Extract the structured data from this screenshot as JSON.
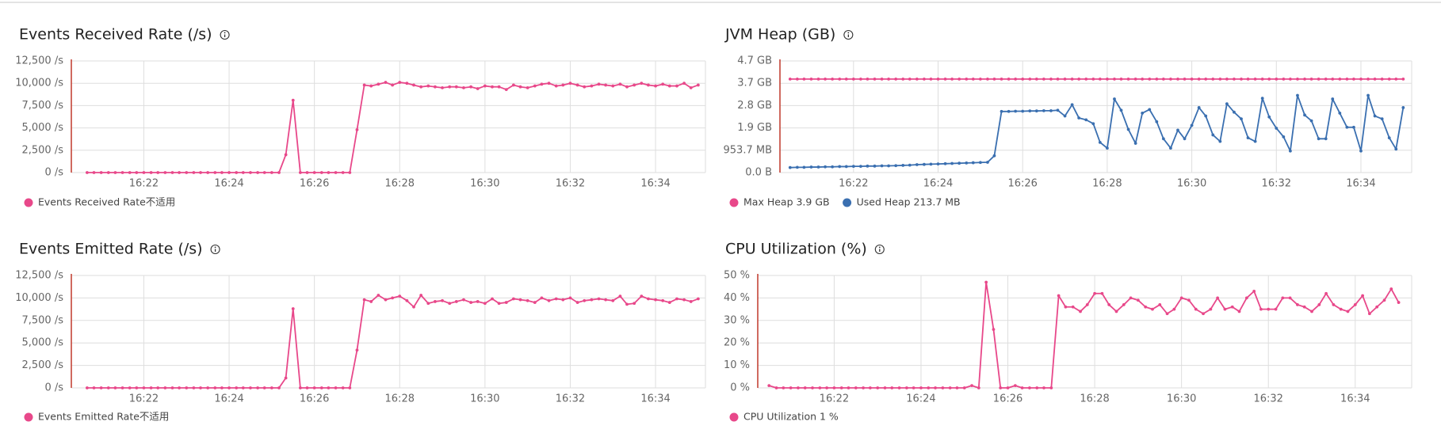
{
  "chart_data": [
    {
      "type": "line",
      "title": "Events Received Rate (/s)",
      "x": [
        20.67,
        20.83,
        21,
        21.17,
        21.33,
        21.5,
        21.67,
        21.83,
        22,
        22.17,
        22.33,
        22.5,
        22.67,
        22.83,
        23,
        23.17,
        23.33,
        23.5,
        23.67,
        23.83,
        24,
        24.17,
        24.33,
        24.5,
        24.67,
        24.83,
        25,
        25.17,
        25.33,
        25.5,
        25.67,
        25.83,
        26,
        26.17,
        26.33,
        26.5,
        26.67,
        26.83,
        27,
        27.17,
        27.33,
        27.5,
        27.67,
        27.83,
        28,
        28.17,
        28.33,
        28.5,
        28.67,
        28.83,
        29,
        29.17,
        29.33,
        29.5,
        29.67,
        29.83,
        30,
        30.17,
        30.33,
        30.5,
        30.67,
        30.83,
        31,
        31.17,
        31.33,
        31.5,
        31.67,
        31.83,
        32,
        32.17,
        32.33,
        32.5,
        32.67,
        32.83,
        33,
        33.17,
        33.33,
        33.5,
        33.67,
        33.83,
        34,
        34.17,
        34.33,
        34.5,
        34.67,
        34.83,
        35
      ],
      "series": [
        {
          "name": "Events Received Rate不适用",
          "color": "#e8488a",
          "values": [
            0,
            0,
            0,
            0,
            0,
            0,
            0,
            0,
            0,
            0,
            0,
            0,
            0,
            0,
            0,
            0,
            0,
            0,
            0,
            0,
            0,
            0,
            0,
            0,
            0,
            0,
            0,
            0,
            2000,
            8100,
            0,
            0,
            0,
            0,
            0,
            0,
            0,
            0,
            4800,
            9800,
            9700,
            9900,
            10100,
            9800,
            10100,
            10000,
            9800,
            9600,
            9700,
            9600,
            9500,
            9600,
            9600,
            9500,
            9600,
            9400,
            9700,
            9600,
            9600,
            9300,
            9800,
            9600,
            9500,
            9700,
            9900,
            10000,
            9700,
            9800,
            10000,
            9800,
            9600,
            9700,
            9900,
            9800,
            9700,
            9900,
            9600,
            9800,
            10000,
            9800,
            9700,
            9900,
            9700,
            9700,
            10000,
            9500,
            9800
          ]
        }
      ],
      "xlim": [
        20.3,
        35.17
      ],
      "xticks": [
        {
          "value": 22,
          "label": "16:22"
        },
        {
          "value": 24,
          "label": "16:24"
        },
        {
          "value": 26,
          "label": "16:26"
        },
        {
          "value": 28,
          "label": "16:28"
        },
        {
          "value": 30,
          "label": "16:30"
        },
        {
          "value": 32,
          "label": "16:32"
        },
        {
          "value": 34,
          "label": "16:34"
        }
      ],
      "ylim": [
        0,
        12500
      ],
      "yticks": [
        {
          "value": 0,
          "label": "0 /s"
        },
        {
          "value": 2500,
          "label": "2,500 /s"
        },
        {
          "value": 5000,
          "label": "5,000 /s"
        },
        {
          "value": 7500,
          "label": "7,500 /s"
        },
        {
          "value": 10000,
          "label": "10,000 /s"
        },
        {
          "value": 12500,
          "label": "12,500 /s"
        }
      ],
      "grid": true
    },
    {
      "type": "line",
      "title": "JVM Heap (GB)",
      "x": [
        20.5,
        20.67,
        20.83,
        21,
        21.17,
        21.33,
        21.5,
        21.67,
        21.83,
        22,
        22.17,
        22.33,
        22.5,
        22.67,
        22.83,
        23,
        23.17,
        23.33,
        23.5,
        23.67,
        23.83,
        24,
        24.17,
        24.33,
        24.5,
        24.67,
        24.83,
        25,
        25.17,
        25.33,
        25.5,
        25.67,
        25.83,
        26,
        26.17,
        26.33,
        26.5,
        26.67,
        26.83,
        27,
        27.17,
        27.33,
        27.5,
        27.67,
        27.83,
        28,
        28.17,
        28.33,
        28.5,
        28.67,
        28.83,
        29,
        29.17,
        29.33,
        29.5,
        29.67,
        29.83,
        30,
        30.17,
        30.33,
        30.5,
        30.67,
        30.83,
        31,
        31.17,
        31.33,
        31.5,
        31.67,
        31.83,
        32,
        32.17,
        32.33,
        32.5,
        32.67,
        32.83,
        33,
        33.17,
        33.33,
        33.5,
        33.67,
        33.83,
        34,
        34.17,
        34.33,
        34.5,
        34.67,
        34.83,
        35
      ],
      "series": [
        {
          "name": "Max Heap 3.9 GB",
          "color": "#e8488a",
          "values": [
            3.9,
            3.9,
            3.9,
            3.9,
            3.9,
            3.9,
            3.9,
            3.9,
            3.9,
            3.9,
            3.9,
            3.9,
            3.9,
            3.9,
            3.9,
            3.9,
            3.9,
            3.9,
            3.9,
            3.9,
            3.9,
            3.9,
            3.9,
            3.9,
            3.9,
            3.9,
            3.9,
            3.9,
            3.9,
            3.9,
            3.9,
            3.9,
            3.9,
            3.9,
            3.9,
            3.9,
            3.9,
            3.9,
            3.9,
            3.9,
            3.9,
            3.9,
            3.9,
            3.9,
            3.9,
            3.9,
            3.9,
            3.9,
            3.9,
            3.9,
            3.9,
            3.9,
            3.9,
            3.9,
            3.9,
            3.9,
            3.9,
            3.9,
            3.9,
            3.9,
            3.9,
            3.9,
            3.9,
            3.9,
            3.9,
            3.9,
            3.9,
            3.9,
            3.9,
            3.9,
            3.9,
            3.9,
            3.9,
            3.9,
            3.9,
            3.9,
            3.9,
            3.9,
            3.9,
            3.9,
            3.9,
            3.9,
            3.9,
            3.9,
            3.9,
            3.9,
            3.9,
            3.9
          ]
        },
        {
          "name": "Used Heap 213.7 MB",
          "color": "#3a6fb0",
          "values": [
            0.2087,
            0.22,
            0.22,
            0.23,
            0.23,
            0.24,
            0.24,
            0.25,
            0.25,
            0.26,
            0.26,
            0.27,
            0.27,
            0.28,
            0.28,
            0.29,
            0.3,
            0.31,
            0.33,
            0.34,
            0.35,
            0.36,
            0.37,
            0.38,
            0.39,
            0.4,
            0.41,
            0.42,
            0.43,
            0.7,
            2.55,
            2.55,
            2.56,
            2.56,
            2.57,
            2.57,
            2.58,
            2.58,
            2.6,
            2.36,
            2.83,
            2.28,
            2.2,
            2.04,
            1.26,
            1.02,
            3.07,
            2.6,
            1.8,
            1.22,
            2.48,
            2.63,
            2.12,
            1.41,
            1.02,
            1.77,
            1.41,
            1.97,
            2.71,
            2.36,
            1.57,
            1.3,
            2.87,
            2.52,
            2.24,
            1.45,
            1.3,
            3.1,
            2.32,
            1.85,
            1.49,
            0.9,
            3.22,
            2.4,
            2.16,
            1.41,
            1.41,
            3.07,
            2.48,
            1.89,
            1.89,
            0.9,
            3.22,
            2.36,
            2.24,
            1.45,
            0.98,
            2.71
          ]
        }
      ],
      "xlim": [
        20.26,
        35.2
      ],
      "xticks": [
        {
          "value": 22,
          "label": "16:22"
        },
        {
          "value": 24,
          "label": "16:24"
        },
        {
          "value": 26,
          "label": "16:26"
        },
        {
          "value": 28,
          "label": "16:28"
        },
        {
          "value": 30,
          "label": "16:30"
        },
        {
          "value": 32,
          "label": "16:32"
        },
        {
          "value": 34,
          "label": "16:34"
        }
      ],
      "ylim": [
        0,
        4.6566
      ],
      "yticks": [
        {
          "value": 0,
          "label": "0.0 B"
        },
        {
          "value": 0.9313,
          "label": "953.7 MB"
        },
        {
          "value": 1.8626,
          "label": "1.9 GB"
        },
        {
          "value": 2.794,
          "label": "2.8 GB"
        },
        {
          "value": 3.7253,
          "label": "3.7 GB"
        },
        {
          "value": 4.6566,
          "label": "4.7 GB"
        }
      ],
      "grid": true
    },
    {
      "type": "line",
      "title": "Events Emitted Rate (/s)",
      "x": [
        20.67,
        20.83,
        21,
        21.17,
        21.33,
        21.5,
        21.67,
        21.83,
        22,
        22.17,
        22.33,
        22.5,
        22.67,
        22.83,
        23,
        23.17,
        23.33,
        23.5,
        23.67,
        23.83,
        24,
        24.17,
        24.33,
        24.5,
        24.67,
        24.83,
        25,
        25.17,
        25.33,
        25.5,
        25.67,
        25.83,
        26,
        26.17,
        26.33,
        26.5,
        26.67,
        26.83,
        27,
        27.17,
        27.33,
        27.5,
        27.67,
        27.83,
        28,
        28.17,
        28.33,
        28.5,
        28.67,
        28.83,
        29,
        29.17,
        29.33,
        29.5,
        29.67,
        29.83,
        30,
        30.17,
        30.33,
        30.5,
        30.67,
        30.83,
        31,
        31.17,
        31.33,
        31.5,
        31.67,
        31.83,
        32,
        32.17,
        32.33,
        32.5,
        32.67,
        32.83,
        33,
        33.17,
        33.33,
        33.5,
        33.67,
        33.83,
        34,
        34.17,
        34.33,
        34.5,
        34.67,
        34.83,
        35
      ],
      "series": [
        {
          "name": "Events Emitted Rate不适用",
          "color": "#e8488a",
          "values": [
            0,
            0,
            0,
            0,
            0,
            0,
            0,
            0,
            0,
            0,
            0,
            0,
            0,
            0,
            0,
            0,
            0,
            0,
            0,
            0,
            0,
            0,
            0,
            0,
            0,
            0,
            0,
            0,
            1100,
            8800,
            0,
            0,
            0,
            0,
            0,
            0,
            0,
            0,
            4200,
            9800,
            9600,
            10300,
            9800,
            10000,
            10200,
            9700,
            9000,
            10300,
            9400,
            9600,
            9700,
            9400,
            9600,
            9800,
            9500,
            9600,
            9400,
            9900,
            9400,
            9500,
            9900,
            9800,
            9700,
            9500,
            10000,
            9700,
            9900,
            9800,
            10000,
            9500,
            9700,
            9800,
            9900,
            9800,
            9700,
            10200,
            9300,
            9400,
            10200,
            9900,
            9800,
            9700,
            9500,
            9900,
            9800,
            9600,
            9900
          ]
        }
      ],
      "xlim": [
        20.3,
        35.17
      ],
      "xticks": [
        {
          "value": 22,
          "label": "16:22"
        },
        {
          "value": 24,
          "label": "16:24"
        },
        {
          "value": 26,
          "label": "16:26"
        },
        {
          "value": 28,
          "label": "16:28"
        },
        {
          "value": 30,
          "label": "16:30"
        },
        {
          "value": 32,
          "label": "16:32"
        },
        {
          "value": 34,
          "label": "16:34"
        }
      ],
      "ylim": [
        0,
        12500
      ],
      "yticks": [
        {
          "value": 0,
          "label": "0 /s"
        },
        {
          "value": 2500,
          "label": "2,500 /s"
        },
        {
          "value": 5000,
          "label": "5,000 /s"
        },
        {
          "value": 7500,
          "label": "7,500 /s"
        },
        {
          "value": 10000,
          "label": "10,000 /s"
        },
        {
          "value": 12500,
          "label": "12,500 /s"
        }
      ],
      "grid": true
    },
    {
      "type": "line",
      "title": "CPU Utilization (%)",
      "x": [
        20.5,
        20.67,
        20.83,
        21,
        21.17,
        21.33,
        21.5,
        21.67,
        21.83,
        22,
        22.17,
        22.33,
        22.5,
        22.67,
        22.83,
        23,
        23.17,
        23.33,
        23.5,
        23.67,
        23.83,
        24,
        24.17,
        24.33,
        24.5,
        24.67,
        24.83,
        25,
        25.17,
        25.33,
        25.5,
        25.67,
        25.83,
        26,
        26.17,
        26.33,
        26.5,
        26.67,
        26.83,
        27,
        27.17,
        27.33,
        27.5,
        27.67,
        27.83,
        28,
        28.17,
        28.33,
        28.5,
        28.67,
        28.83,
        29,
        29.17,
        29.33,
        29.5,
        29.67,
        29.83,
        30,
        30.17,
        30.33,
        30.5,
        30.67,
        30.83,
        31,
        31.17,
        31.33,
        31.5,
        31.67,
        31.83,
        32,
        32.17,
        32.33,
        32.5,
        32.67,
        32.83,
        33,
        33.17,
        33.33,
        33.5,
        33.67,
        33.83,
        34,
        34.17,
        34.33,
        34.5,
        34.67,
        34.83,
        35
      ],
      "series": [
        {
          "name": "CPU Utilization 1 %",
          "color": "#e8488a",
          "values": [
            1,
            0,
            0,
            0,
            0,
            0,
            0,
            0,
            0,
            0,
            0,
            0,
            0,
            0,
            0,
            0,
            0,
            0,
            0,
            0,
            0,
            0,
            0,
            0,
            0,
            0,
            0,
            0,
            1,
            0,
            47,
            26,
            0,
            0,
            1,
            0,
            0,
            0,
            0,
            0,
            41,
            36,
            36,
            34,
            37,
            42,
            42,
            37,
            34,
            37,
            40,
            39,
            36,
            35,
            37,
            33,
            35,
            40,
            39,
            35,
            33,
            35,
            40,
            35,
            36,
            34,
            40,
            43,
            35,
            35,
            35,
            40,
            40,
            37,
            36,
            34,
            37,
            42,
            37,
            35,
            34,
            37,
            41,
            33,
            36,
            39,
            44,
            38
          ]
        }
      ],
      "xlim": [
        20.24,
        35.3
      ],
      "xticks": [
        {
          "value": 22,
          "label": "16:22"
        },
        {
          "value": 24,
          "label": "16:24"
        },
        {
          "value": 26,
          "label": "16:26"
        },
        {
          "value": 28,
          "label": "16:28"
        },
        {
          "value": 30,
          "label": "16:30"
        },
        {
          "value": 32,
          "label": "16:32"
        },
        {
          "value": 34,
          "label": "16:34"
        }
      ],
      "ylim": [
        0,
        50
      ],
      "yticks": [
        {
          "value": 0,
          "label": "0 %"
        },
        {
          "value": 10,
          "label": "10 %"
        },
        {
          "value": 20,
          "label": "20 %"
        },
        {
          "value": 30,
          "label": "30 %"
        },
        {
          "value": 40,
          "label": "40 %"
        },
        {
          "value": 50,
          "label": "50 %"
        }
      ],
      "grid": true
    }
  ]
}
